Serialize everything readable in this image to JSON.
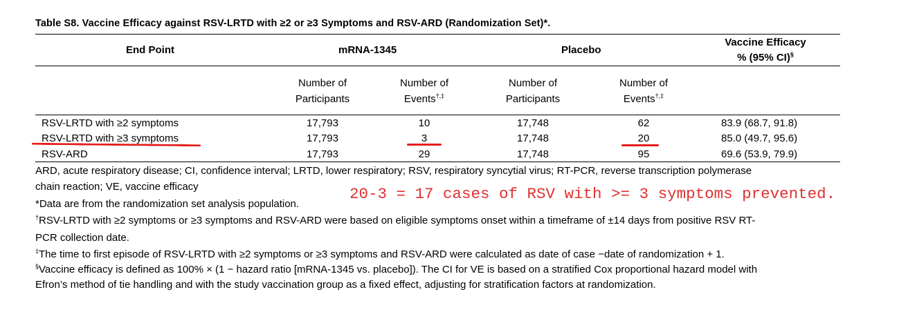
{
  "table": {
    "title": "Table S8. Vaccine Efficacy against RSV-LRTD with ≥2 or ≥3 Symptoms and RSV-ARD (Randomization Set)*.",
    "headers": {
      "end_point": "End Point",
      "group1": "mRNA-1345",
      "group2": "Placebo",
      "ve_line1": "Vaccine Efficacy",
      "ve_line2": "% (95% CI)",
      "ve_sup": "§"
    },
    "subheaders": {
      "participants_line1": "Number of",
      "participants_line2": "Participants",
      "events_line1": "Number of",
      "events_line2": "Events",
      "events_sup": "†,‡"
    },
    "rows": [
      {
        "end_point": "RSV-LRTD with ≥2 symptoms",
        "m_participants": "17,793",
        "m_events": "10",
        "p_participants": "17,748",
        "p_events": "62",
        "ve": "83.9 (68.7, 91.8)"
      },
      {
        "end_point": "RSV-LRTD with ≥3 symptoms",
        "m_participants": "17,793",
        "m_events": "3",
        "p_participants": "17,748",
        "p_events": "20",
        "ve": "85.0 (49.7, 95.6)"
      },
      {
        "end_point": "RSV-ARD",
        "m_participants": "17,793",
        "m_events": "29",
        "p_participants": "17,748",
        "p_events": "95",
        "ve": "69.6 (53.9, 79.9)"
      }
    ]
  },
  "footnotes": {
    "abbrev_line1": "ARD, acute respiratory disease; CI, confidence interval; LRTD, lower respiratory; RSV, respiratory syncytial virus; RT-PCR, reverse transcription polymerase",
    "abbrev_line2": "chain reaction; VE, vaccine efficacy",
    "star": "*Data are from the randomization set analysis population.",
    "dagger_sym": "†",
    "dagger_line1": "RSV-LRTD with ≥2 symptoms or ≥3 symptoms and RSV-ARD were based on eligible symptoms onset within a timeframe of ±14 days from positive RSV RT-",
    "dagger_line2": "PCR collection date.",
    "ddagger_sym": "‡",
    "ddagger": "The time to first episode of RSV-LRTD with ≥2 symptoms or ≥3 symptoms and RSV-ARD were calculated as date of case −date of randomization + 1.",
    "section_sym": "§",
    "section_line1": "Vaccine efficacy is defined as 100% × (1 − hazard ratio [mRNA-1345 vs. placebo]). The CI for VE is based on a stratified Cox proportional hazard model with",
    "section_line2": "Efron’s method of tie handling and with the study vaccination group as a fixed effect, adjusting for stratification factors at randomization."
  },
  "annotation": {
    "text": "20-3 = 17 cases of RSV with >= 3 symptoms prevented.",
    "color": "#e03030"
  }
}
